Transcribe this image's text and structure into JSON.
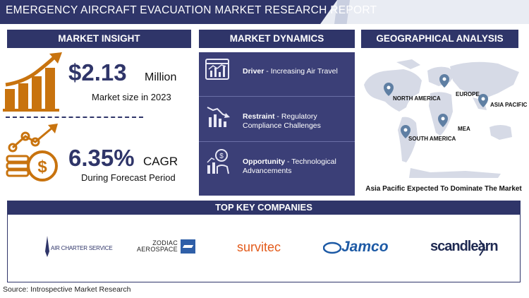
{
  "report": {
    "title": "EMERGENCY AIRCRAFT EVACUATION MARKET RESEARCH REPORT"
  },
  "market_insight": {
    "header": "MARKET INSIGHT",
    "market_size_value": "$2.13",
    "market_size_unit": "Million",
    "market_size_caption": "Market size in 2023",
    "cagr_value": "6.35%",
    "cagr_unit": "CAGR",
    "cagr_caption": "During Forecast Period"
  },
  "market_dynamics": {
    "header": "MARKET DYNAMICS",
    "items": [
      {
        "label": "Driver",
        "text": " - Increasing Air Travel",
        "icon": "driver-chart-icon"
      },
      {
        "label": "Restraint",
        "text": " - Regulatory Compliance Challenges",
        "icon": "restraint-chart-icon"
      },
      {
        "label": "Opportunity",
        "text": " - Technological Advancements",
        "icon": "opportunity-growth-icon"
      }
    ]
  },
  "geographical_analysis": {
    "header": "GEOGRAPHICAL ANALYSIS",
    "regions": [
      "NORTH AMERICA",
      "EUROPE",
      "ASIA PACIFIC",
      "MEA",
      "SOUTH AMERICA"
    ],
    "footer": "Asia Pacific Expected To Dominate The Market"
  },
  "top_companies": {
    "header": "TOP KEY COMPANIES",
    "logos": [
      "AIR CHARTER SERVICE",
      "ZODIAC AEROSPACE",
      "survitec",
      "Jamco",
      "scandlearn"
    ]
  },
  "source": "Source: Introspective Market Research",
  "colors": {
    "navy": "#2f3569",
    "panel": "#3b3f77",
    "orange": "#c8730e",
    "pin": "#5f7fa3"
  }
}
